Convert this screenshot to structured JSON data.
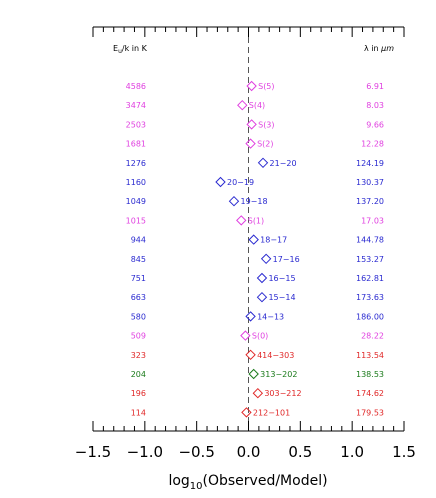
{
  "chart_data": {
    "type": "scatter",
    "xlabel_base": "log",
    "xlabel_sub": "10",
    "xlabel_rest": "(Observed/Model)",
    "xlim": [
      -1.5,
      1.5
    ],
    "x_ticks": [
      "−1.5",
      "−1.0",
      "−0.5",
      "0.0",
      "0.5",
      "1.0",
      "1.5"
    ],
    "left_header": "E",
    "left_header_sub": "u",
    "left_header_rest": "/k in K",
    "right_header": "λ in ",
    "right_header_unit": "μm",
    "marker": "diamond",
    "colors": {
      "magenta": "#e040e0",
      "blue": "#2a2ad0",
      "red": "#e02828",
      "green": "#1a7a1a"
    },
    "rows": [
      {
        "eu": "4586",
        "label": "S(5)",
        "lambda": "6.91",
        "x": 0.03,
        "color": "magenta"
      },
      {
        "eu": "3474",
        "label": "S(4)",
        "lambda": "8.03",
        "x": -0.06,
        "color": "magenta"
      },
      {
        "eu": "2503",
        "label": "S(3)",
        "lambda": "9.66",
        "x": 0.03,
        "color": "magenta"
      },
      {
        "eu": "1681",
        "label": "S(2)",
        "lambda": "12.28",
        "x": 0.02,
        "color": "magenta"
      },
      {
        "eu": "1276",
        "label": "21−20",
        "lambda": "124.19",
        "x": 0.14,
        "color": "blue"
      },
      {
        "eu": "1160",
        "label": "20−19",
        "lambda": "130.37",
        "x": -0.27,
        "color": "blue"
      },
      {
        "eu": "1049",
        "label": "19−18",
        "lambda": "137.20",
        "x": -0.14,
        "color": "blue"
      },
      {
        "eu": "1015",
        "label": "S(1)",
        "lambda": "17.03",
        "x": -0.07,
        "color": "magenta"
      },
      {
        "eu": "944",
        "label": "18−17",
        "lambda": "144.78",
        "x": 0.05,
        "color": "blue"
      },
      {
        "eu": "845",
        "label": "17−16",
        "lambda": "153.27",
        "x": 0.17,
        "color": "blue"
      },
      {
        "eu": "751",
        "label": "16−15",
        "lambda": "162.81",
        "x": 0.13,
        "color": "blue"
      },
      {
        "eu": "663",
        "label": "15−14",
        "lambda": "173.63",
        "x": 0.13,
        "color": "blue"
      },
      {
        "eu": "580",
        "label": "14−13",
        "lambda": "186.00",
        "x": 0.02,
        "color": "blue"
      },
      {
        "eu": "509",
        "label": "S(0)",
        "lambda": "28.22",
        "x": -0.03,
        "color": "magenta"
      },
      {
        "eu": "323",
        "label": "414−303",
        "lambda": "113.54",
        "x": 0.02,
        "color": "red"
      },
      {
        "eu": "204",
        "label": "313−202",
        "lambda": "138.53",
        "x": 0.05,
        "color": "green"
      },
      {
        "eu": "196",
        "label": "303−212",
        "lambda": "174.62",
        "x": 0.09,
        "color": "red"
      },
      {
        "eu": "114",
        "label": "212−101",
        "lambda": "179.53",
        "x": -0.02,
        "color": "red"
      }
    ]
  }
}
